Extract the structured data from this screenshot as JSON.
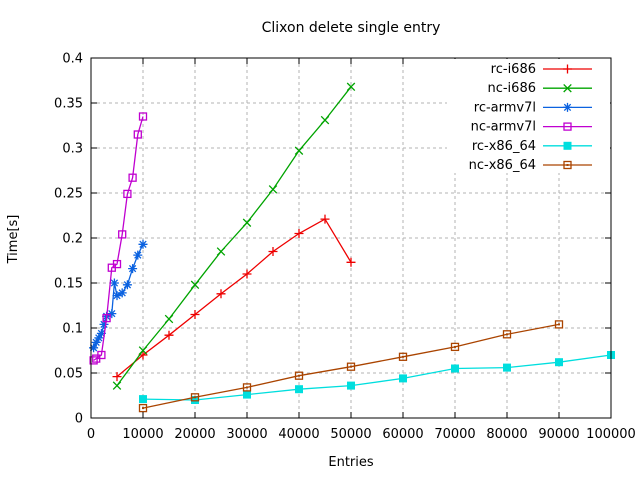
{
  "figure": {
    "title": "Clixon delete single entry",
    "xlabel": "Entries",
    "ylabel": "Time[s]"
  },
  "chart_data": {
    "type": "line",
    "title": "Clixon delete single entry",
    "xlabel": "Entries",
    "ylabel": "Time[s]",
    "xlim": [
      0,
      100000
    ],
    "ylim": [
      0,
      0.4
    ],
    "x_ticks": [
      0,
      10000,
      20000,
      30000,
      40000,
      50000,
      60000,
      70000,
      80000,
      90000,
      100000
    ],
    "x_tick_labels": [
      "0",
      "10000",
      "20000",
      "30000",
      "40000",
      "50000",
      "60000",
      "70000",
      "80000",
      "90000",
      "100000"
    ],
    "y_ticks": [
      0,
      0.05,
      0.1,
      0.15,
      0.2,
      0.25,
      0.3,
      0.35,
      0.4
    ],
    "y_tick_labels": [
      "0",
      "0.05",
      "0.1",
      "0.15",
      "0.2",
      "0.25",
      "0.3",
      "0.35",
      "0.4"
    ],
    "grid": true,
    "grid_color": "#b3b3b3",
    "legend_position": "top-right-inside",
    "series": [
      {
        "name": "rc-i686",
        "color": "#ee0000",
        "marker": "plus",
        "x": [
          5000,
          10000,
          15000,
          20000,
          25000,
          30000,
          35000,
          40000,
          45000,
          50000
        ],
        "y": [
          0.046,
          0.07,
          0.092,
          0.115,
          0.138,
          0.16,
          0.185,
          0.205,
          0.221,
          0.173
        ]
      },
      {
        "name": "nc-i686",
        "color": "#00a400",
        "marker": "cross",
        "x": [
          5000,
          10000,
          15000,
          20000,
          25000,
          30000,
          35000,
          40000,
          45000,
          50000
        ],
        "y": [
          0.036,
          0.075,
          0.11,
          0.148,
          0.185,
          0.217,
          0.254,
          0.297,
          0.331,
          0.368
        ]
      },
      {
        "name": "rc-armv7l",
        "color": "#0b62e0",
        "marker": "asterisk",
        "x": [
          500,
          1000,
          1500,
          2000,
          2500,
          3000,
          4000,
          4500,
          5000,
          6000,
          7000,
          8000,
          9000,
          10000
        ],
        "y": [
          0.078,
          0.084,
          0.089,
          0.094,
          0.104,
          0.113,
          0.116,
          0.15,
          0.136,
          0.139,
          0.148,
          0.166,
          0.181,
          0.193
        ]
      },
      {
        "name": "nc-armv7l",
        "color": "#c000d0",
        "marker": "square-open",
        "x": [
          500,
          1000,
          2000,
          3000,
          4000,
          5000,
          6000,
          7000,
          8000,
          9000,
          10000
        ],
        "y": [
          0.064,
          0.066,
          0.07,
          0.111,
          0.167,
          0.171,
          0.204,
          0.249,
          0.267,
          0.315,
          0.335
        ]
      },
      {
        "name": "rc-x86_64",
        "color": "#00dede",
        "marker": "square-filled",
        "x": [
          10000,
          20000,
          30000,
          40000,
          50000,
          60000,
          70000,
          80000,
          90000,
          100000
        ],
        "y": [
          0.021,
          0.02,
          0.026,
          0.032,
          0.036,
          0.044,
          0.055,
          0.056,
          0.062,
          0.07
        ]
      },
      {
        "name": "nc-x86_64",
        "color": "#aa4400",
        "marker": "square-dot",
        "x": [
          10000,
          20000,
          30000,
          40000,
          50000,
          60000,
          70000,
          80000,
          90000
        ],
        "y": [
          0.011,
          0.023,
          0.034,
          0.047,
          0.057,
          0.068,
          0.079,
          0.093,
          0.104
        ]
      }
    ]
  }
}
